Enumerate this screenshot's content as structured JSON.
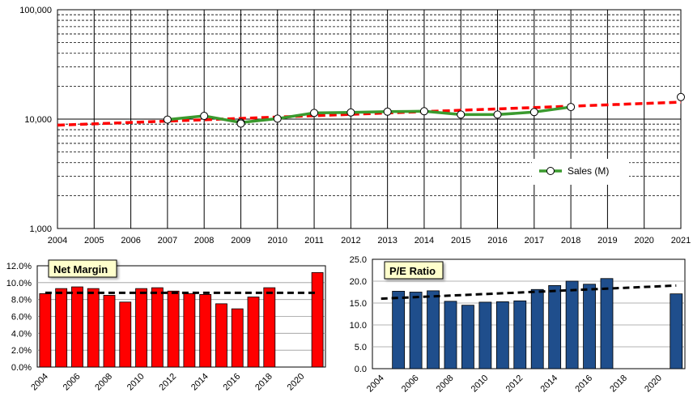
{
  "chart_data": [
    {
      "type": "line",
      "scale": "log",
      "title": "",
      "ylim": [
        1000,
        100000
      ],
      "y_tick_labels": [
        "100,000",
        "10,000",
        "1,000"
      ],
      "y_tick_values": [
        100000,
        10000,
        1000
      ],
      "x_tick_labels": [
        "2004",
        "2005",
        "2006",
        "2007",
        "2008",
        "2009",
        "2010",
        "2011",
        "2012",
        "2013",
        "2014",
        "2015",
        "2016",
        "2017",
        "2018",
        "2019",
        "2020",
        "2021"
      ],
      "x_start": 2004,
      "x_end": 2021,
      "series": [
        {
          "name": "Sales (M)",
          "color": "#3a9a2e",
          "x": [
            2007,
            2008,
            2009,
            2010,
            2011,
            2012,
            2013,
            2014,
            2015,
            2016,
            2017,
            2018
          ],
          "values": [
            9900,
            10700,
            9300,
            10100,
            11400,
            11500,
            11700,
            11800,
            11000,
            11000,
            11600,
            12900
          ]
        }
      ],
      "projection_points": [
        {
          "x": 2009,
          "value": 9100
        },
        {
          "x": 2021,
          "value": 15900
        }
      ],
      "trend": {
        "color": "#ff0000",
        "x": [
          2004,
          2021
        ],
        "values": [
          8800,
          14300
        ]
      },
      "legend": {
        "label": "Sales (M)",
        "position": "center-right"
      }
    },
    {
      "type": "bar",
      "title": "Net Margin",
      "bar_color": "#ff0000",
      "ylim": [
        0,
        12
      ],
      "y_tick_labels": [
        "12.0%",
        "10.0%",
        "8.0%",
        "6.0%",
        "4.0%",
        "2.0%",
        "0.0%"
      ],
      "y_tick_values": [
        12,
        10,
        8,
        6,
        4,
        2,
        0
      ],
      "x_tick_labels": [
        "2004",
        "2006",
        "2008",
        "2010",
        "2012",
        "2014",
        "2016",
        "2018",
        "2020"
      ],
      "years": [
        2004,
        2005,
        2006,
        2007,
        2008,
        2009,
        2010,
        2011,
        2012,
        2013,
        2014,
        2015,
        2016,
        2017,
        2018,
        2019,
        2020,
        2021
      ],
      "values": [
        8.7,
        9.3,
        9.5,
        9.3,
        8.5,
        7.7,
        9.3,
        9.4,
        9.0,
        8.7,
        8.6,
        7.5,
        6.9,
        8.3,
        9.4,
        null,
        null,
        11.2
      ],
      "trend": {
        "color": "#000000",
        "values": [
          8.8,
          8.8
        ]
      }
    },
    {
      "type": "bar",
      "title": "P/E Ratio",
      "bar_color": "#1f4e8c",
      "ylim": [
        0,
        25
      ],
      "y_tick_labels": [
        "25.0",
        "20.0",
        "15.0",
        "10.0",
        "5.0",
        "0.0"
      ],
      "y_tick_values": [
        25,
        20,
        15,
        10,
        5,
        0
      ],
      "x_tick_labels": [
        "2004",
        "2006",
        "2008",
        "2010",
        "2012",
        "2014",
        "2016",
        "2018",
        "2020"
      ],
      "years": [
        2004,
        2005,
        2006,
        2007,
        2008,
        2009,
        2010,
        2011,
        2012,
        2013,
        2014,
        2015,
        2016,
        2017,
        2018,
        2019,
        2020,
        2021
      ],
      "values": [
        null,
        17.7,
        17.5,
        17.8,
        15.4,
        14.5,
        15.2,
        15.3,
        15.5,
        18.1,
        19.0,
        20.0,
        19.3,
        20.6,
        null,
        null,
        null,
        17.1
      ],
      "trend": {
        "color": "#000000",
        "values": [
          16.0,
          19.0
        ]
      }
    }
  ]
}
